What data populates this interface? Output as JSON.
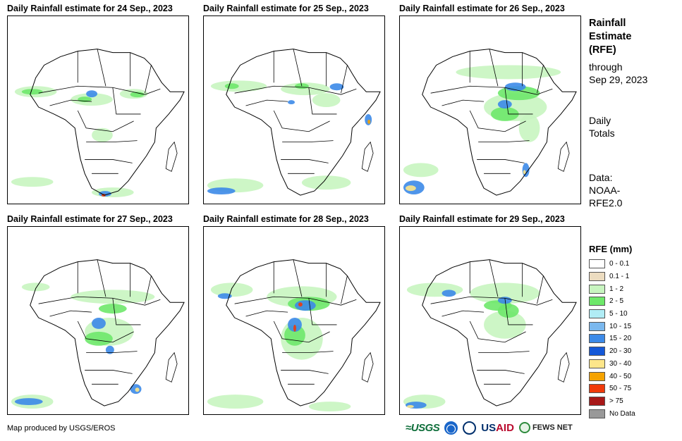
{
  "panels": [
    {
      "title": "Daily Rainfall estimate for 24 Sep., 2023"
    },
    {
      "title": "Daily Rainfall estimate for 25 Sep., 2023"
    },
    {
      "title": "Daily Rainfall estimate for 26 Sep., 2023"
    },
    {
      "title": "Daily Rainfall estimate for 27 Sep., 2023"
    },
    {
      "title": "Daily Rainfall estimate for 28 Sep., 2023"
    },
    {
      "title": "Daily Rainfall estimate for 29 Sep., 2023"
    }
  ],
  "info": {
    "title_line1": "Rainfall",
    "title_line2": "Estimate",
    "title_line3": "(RFE)",
    "through_label": "through",
    "through_date": "Sep 29, 2023",
    "totals_line1": "Daily",
    "totals_line2": "Totals",
    "data_line1": "Data:",
    "data_line2": "NOAA-",
    "data_line3": "RFE2.0"
  },
  "legend": {
    "title": "RFE (mm)",
    "items": [
      {
        "label": "0 - 0.1",
        "color": "#ffffff"
      },
      {
        "label": "0.1 - 1",
        "color": "#ecdcc0"
      },
      {
        "label": "1 - 2",
        "color": "#c8f5c0"
      },
      {
        "label": "2 - 5",
        "color": "#6ee86a"
      },
      {
        "label": "5 - 10",
        "color": "#b0ecf5"
      },
      {
        "label": "10 - 15",
        "color": "#7ab8ee"
      },
      {
        "label": "15 - 20",
        "color": "#3c8ae8"
      },
      {
        "label": "20 - 30",
        "color": "#1458d8"
      },
      {
        "label": "30 - 40",
        "color": "#fde68a"
      },
      {
        "label": "40 - 50",
        "color": "#f5a300"
      },
      {
        "label": "50 - 75",
        "color": "#f03a0a"
      },
      {
        "label": "> 75",
        "color": "#a81818"
      },
      {
        "label": "No Data",
        "color": "#999999"
      }
    ]
  },
  "footer": {
    "credit": "Map produced by USGS/EROS"
  },
  "logos": {
    "usgs": "≈USGS",
    "usaid_part1": "US",
    "usaid_part2": "AID",
    "fews": "FEWS NET"
  }
}
